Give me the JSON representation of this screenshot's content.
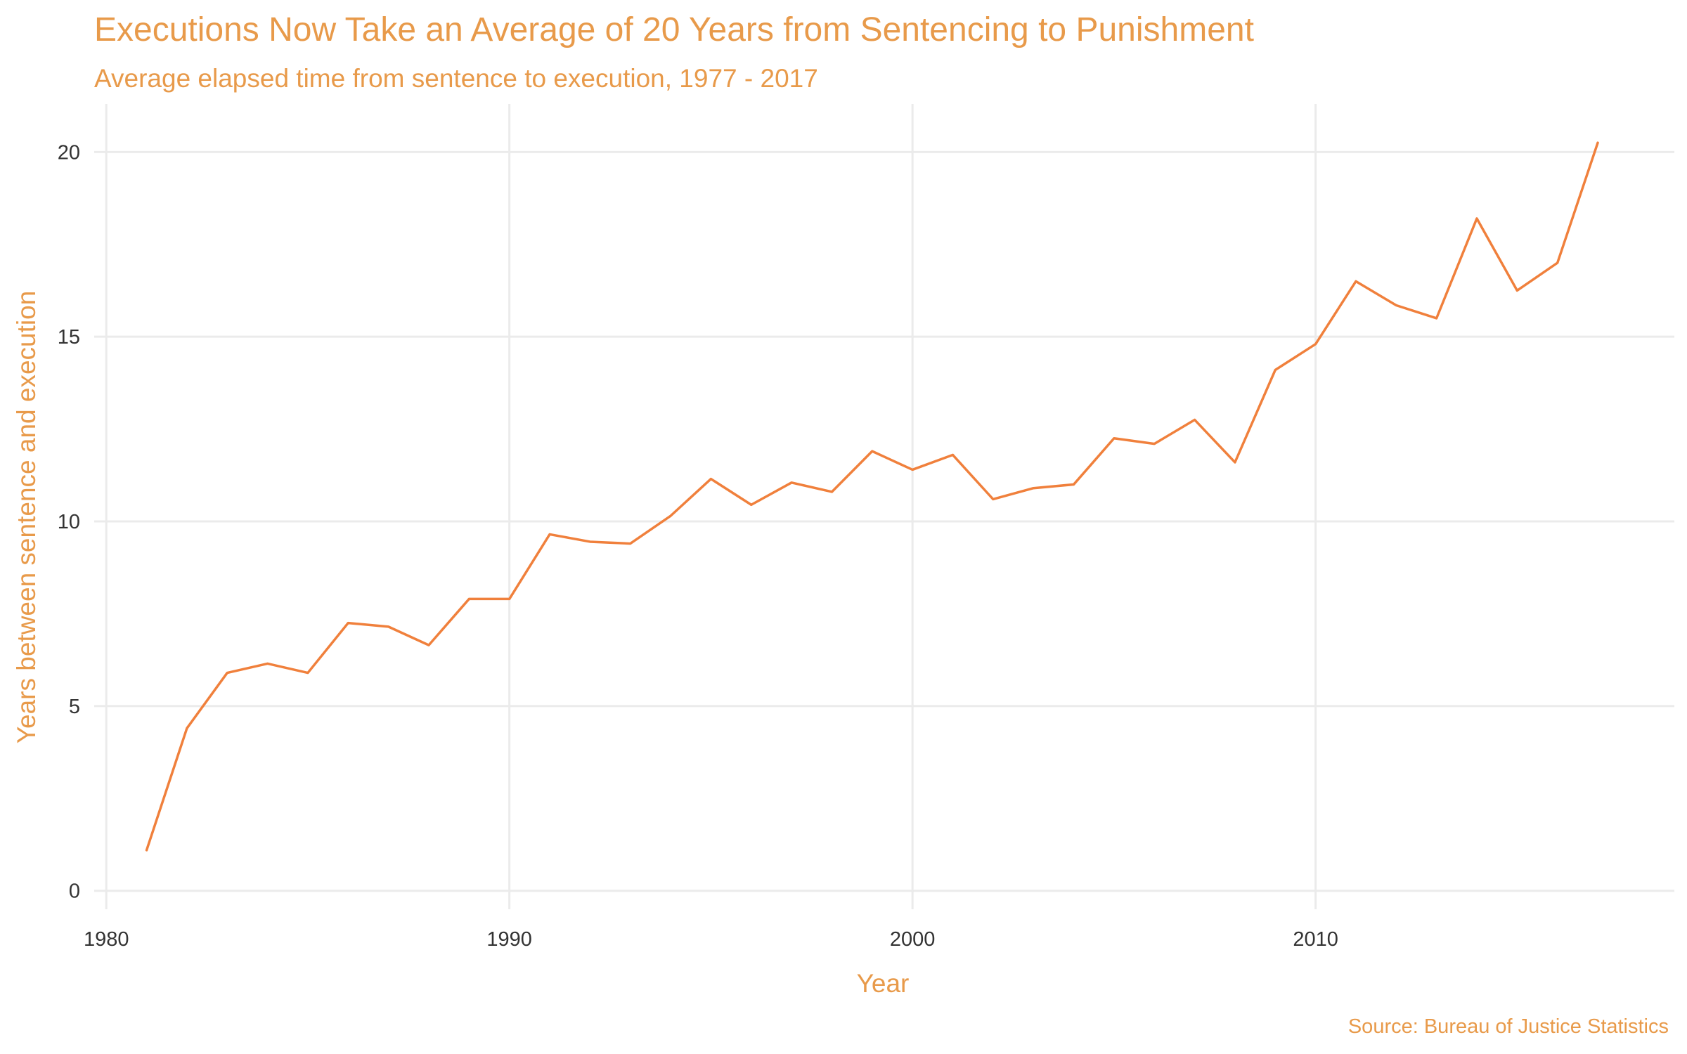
{
  "colors": {
    "accent": "#E89A4A",
    "line": "#F0803C",
    "grid": "#EBEBEB",
    "tick_text": "#333333",
    "background": "#FFFFFF"
  },
  "chart_data": {
    "type": "line",
    "title": "Executions Now Take an Average of 20 Years from Sentencing to Punishment",
    "subtitle": "Average elapsed time from sentence to execution, 1977 - 2017",
    "xlabel": "Year",
    "ylabel": "Years between sentence and execution",
    "caption": "Source: Bureau of Justice Statistics",
    "xlim": [
      1979.7,
      2018.9
    ],
    "ylim": [
      -0.5,
      21.3
    ],
    "x_ticks": [
      1980,
      1990,
      2000,
      2010
    ],
    "y_ticks": [
      0,
      5,
      10,
      15,
      20
    ],
    "grid": true,
    "legend": "none",
    "series": [
      {
        "x": [
          1981,
          1982,
          1983,
          1984,
          1985,
          1986,
          1987,
          1988,
          1989,
          1990,
          1991,
          1992,
          1993,
          1994,
          1995,
          1996,
          1997,
          1998,
          1999,
          2000,
          2001,
          2002,
          2003,
          2004,
          2005,
          2006,
          2007,
          2008,
          2009,
          2010,
          2011,
          2012,
          2013,
          2014,
          2015,
          2016,
          2017
        ],
        "values": [
          1.1,
          4.4,
          5.9,
          6.15,
          5.9,
          7.25,
          7.15,
          6.65,
          7.9,
          7.9,
          9.65,
          9.45,
          9.4,
          10.15,
          11.15,
          10.45,
          11.05,
          10.8,
          11.9,
          11.4,
          11.8,
          10.6,
          10.9,
          11.0,
          12.25,
          12.1,
          12.75,
          11.6,
          14.1,
          14.8,
          16.5,
          15.85,
          15.5,
          18.2,
          16.25,
          17.0,
          20.25
        ]
      }
    ]
  }
}
